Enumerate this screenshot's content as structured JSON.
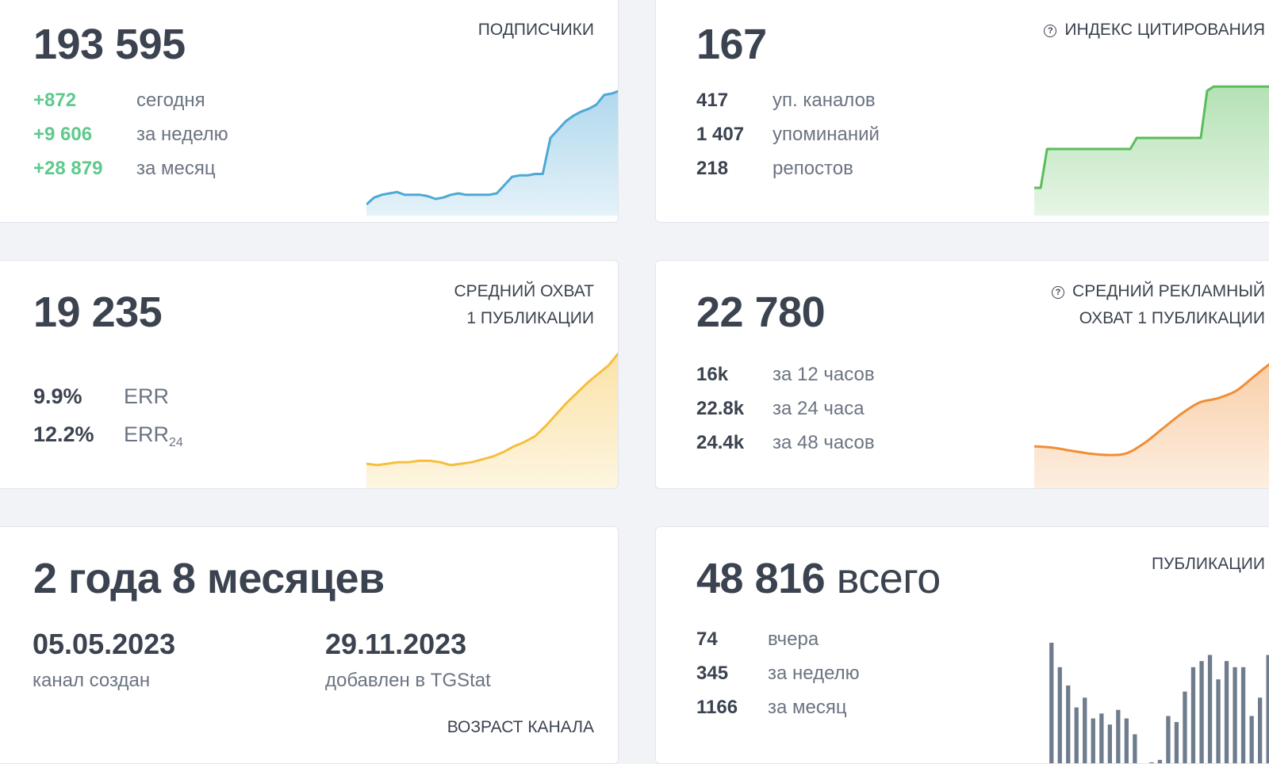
{
  "subscribers": {
    "value": "193 595",
    "title": "ПОДПИСЧИКИ",
    "rows": [
      {
        "value": "+872",
        "label": "сегодня"
      },
      {
        "value": "+9 606",
        "label": "за неделю"
      },
      {
        "value": "+28 879",
        "label": "за месяц"
      }
    ],
    "color": "#4ea8d6",
    "chart_data": {
      "type": "area",
      "values": [
        8,
        13,
        15,
        16,
        17,
        15,
        15,
        15,
        14,
        12,
        13,
        15,
        16,
        15,
        15,
        15,
        15,
        16,
        22,
        28,
        29,
        29,
        30,
        30,
        56,
        62,
        68,
        72,
        75,
        77,
        80,
        87,
        88,
        90
      ],
      "ylim": [
        0,
        100
      ]
    }
  },
  "citation": {
    "value": "167",
    "title": "ИНДЕКС ЦИТИРОВАНИЯ",
    "rows": [
      {
        "value": "417",
        "label": "уп. каналов"
      },
      {
        "value": "1 407",
        "label": "упоминаний"
      },
      {
        "value": "218",
        "label": "репостов"
      }
    ],
    "color": "#5bbd5a",
    "chart_data": {
      "type": "area",
      "step_points": [
        [
          0,
          20
        ],
        [
          1,
          20
        ],
        [
          2,
          48
        ],
        [
          15,
          48
        ],
        [
          16,
          56
        ],
        [
          26,
          56
        ],
        [
          27,
          90
        ],
        [
          28,
          93
        ],
        [
          40,
          93
        ]
      ],
      "ylim": [
        0,
        100
      ]
    }
  },
  "reach": {
    "value": "19 235",
    "title_lines": [
      "СРЕДНИЙ ОХВАТ",
      "1 ПУБЛИКАЦИИ"
    ],
    "rows": [
      {
        "value": "9.9%",
        "label": "ERR",
        "sub": ""
      },
      {
        "value": "12.2%",
        "label": "ERR",
        "sub": "24"
      }
    ],
    "color": "#f5bf3c",
    "chart_data": {
      "type": "area",
      "values": [
        18,
        17,
        18,
        19,
        19,
        20,
        20,
        19,
        17,
        18,
        19,
        21,
        23,
        26,
        30,
        33,
        37,
        44,
        52,
        60,
        67,
        74,
        80,
        86,
        95
      ],
      "ylim": [
        0,
        100
      ]
    }
  },
  "ad_reach": {
    "value": "22 780",
    "title_lines": [
      "СРЕДНИЙ РЕКЛАМНЫЙ",
      "ОХВАТ 1 ПУБЛИКАЦИИ"
    ],
    "rows": [
      {
        "value": "16k",
        "label": "за 12 часов"
      },
      {
        "value": "22.8k",
        "label": "за 24 часа"
      },
      {
        "value": "24.4k",
        "label": "за 48 часов"
      }
    ],
    "color": "#f08e36",
    "chart_data": {
      "type": "area",
      "values": [
        30,
        29,
        27,
        25,
        24,
        25,
        32,
        42,
        52,
        60,
        63,
        68,
        78,
        88,
        96
      ],
      "ylim": [
        0,
        100
      ]
    }
  },
  "age": {
    "value": "2 года 8 месяцев",
    "created_date": "05.05.2023",
    "created_label": "канал создан",
    "added_date": "29.11.2023",
    "added_label": "добавлен в TGStat",
    "title": "ВОЗРАСТ КАНАЛА"
  },
  "posts": {
    "value": "48 816",
    "value_suffix": "всего",
    "title": "ПУБЛИКАЦИИ",
    "rows": [
      {
        "value": "74",
        "label": "вчера"
      },
      {
        "value": "345",
        "label": "за неделю"
      },
      {
        "value": "1166",
        "label": "за месяц"
      }
    ],
    "color": "#6f7c8e",
    "chart_data": {
      "type": "bar",
      "values": [
        100,
        80,
        65,
        47,
        55,
        38,
        42,
        33,
        45,
        38,
        25,
        0,
        2,
        4,
        40,
        35,
        60,
        80,
        85,
        90,
        70,
        85,
        80,
        80,
        40,
        55,
        90,
        100,
        75
      ],
      "ylim": [
        0,
        100
      ]
    }
  }
}
